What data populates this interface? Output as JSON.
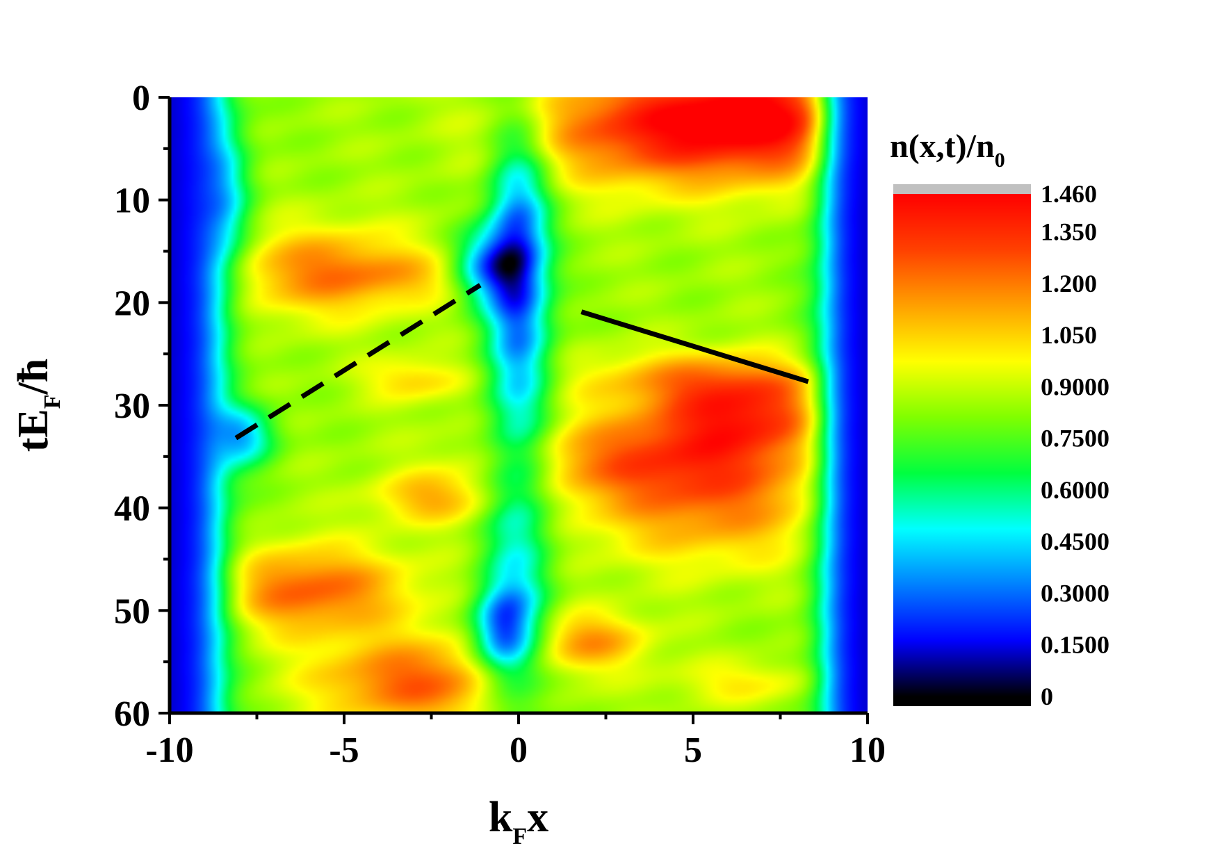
{
  "chart_data": {
    "type": "heatmap",
    "title": "",
    "xlabel": {
      "main": "k",
      "sub": "F",
      "tail": "x"
    },
    "ylabel": {
      "main": "tE",
      "sub": "F",
      "tail": "/ħ"
    },
    "xlim": [
      -10,
      10
    ],
    "ylim": [
      0,
      60
    ],
    "y_inverted": true,
    "x_ticks": [
      -10,
      -5,
      0,
      5,
      10
    ],
    "x_tick_labels": [
      "-10",
      "-5",
      "0",
      "5",
      "10"
    ],
    "y_ticks": [
      0,
      10,
      20,
      30,
      40,
      50,
      60
    ],
    "y_tick_labels": [
      "0",
      "10",
      "20",
      "30",
      "40",
      "50",
      "60"
    ],
    "colorbar": {
      "title": {
        "main": "n(x,t)/n",
        "sub": "0"
      },
      "range": [
        0,
        1.46
      ],
      "labels": [
        "1.460",
        "1.350",
        "1.200",
        "1.050",
        "0.9000",
        "0.7500",
        "0.6000",
        "0.4500",
        "0.3000",
        "0.1500",
        "0"
      ],
      "label_values": [
        1.46,
        1.35,
        1.2,
        1.05,
        0.9,
        0.75,
        0.6,
        0.45,
        0.3,
        0.15,
        0
      ],
      "colormap": [
        "#000000",
        "#0000ff",
        "#0080ff",
        "#00ffff",
        "#00ff40",
        "#80ff00",
        "#ffff00",
        "#ffa000",
        "#ff4000",
        "#ff0000"
      ],
      "over_color": "#c0c0c0"
    },
    "overlay_lines": [
      {
        "name": "dashed",
        "style": "dashed",
        "color": "#000000",
        "points": [
          [
            -8.1,
            33.2
          ],
          [
            -1.1,
            18.3
          ]
        ]
      },
      {
        "name": "solid",
        "style": "solid",
        "color": "#000000",
        "points": [
          [
            1.8,
            20.9
          ],
          [
            8.3,
            27.7
          ]
        ]
      }
    ],
    "density_features": {
      "background": 0.85,
      "edge_decay_left": -8.6,
      "edge_decay_right": 8.8,
      "blobs": [
        {
          "x": 7.5,
          "y": 2,
          "sx": 2.5,
          "sy": 4,
          "amp": 0.55
        },
        {
          "x": 3.5,
          "y": 3,
          "sx": 2.5,
          "sy": 4,
          "amp": 0.4
        },
        {
          "x": -5.5,
          "y": 17,
          "sx": 2.0,
          "sy": 3.0,
          "amp": 0.35
        },
        {
          "x": -3,
          "y": 17.5,
          "sx": 1.3,
          "sy": 1.5,
          "amp": 0.1
        },
        {
          "x": 5.5,
          "y": 27.5,
          "sx": 2.5,
          "sy": 2.0,
          "amp": 0.3
        },
        {
          "x": 6.5,
          "y": 31,
          "sx": 1.8,
          "sy": 2.5,
          "amp": 0.4
        },
        {
          "x": 4,
          "y": 35,
          "sx": 3.0,
          "sy": 3.0,
          "amp": 0.35
        },
        {
          "x": 5.5,
          "y": 40,
          "sx": 2.5,
          "sy": 4.0,
          "amp": 0.3
        },
        {
          "x": -2.5,
          "y": 39,
          "sx": 1.2,
          "sy": 1.8,
          "amp": 0.25
        },
        {
          "x": -3,
          "y": 27.5,
          "sx": 1.0,
          "sy": 1.5,
          "amp": 0.2
        },
        {
          "x": -6,
          "y": 48,
          "sx": 2.0,
          "sy": 3.0,
          "amp": 0.4
        },
        {
          "x": -3,
          "y": 57,
          "sx": 2.0,
          "sy": 3.0,
          "amp": 0.4
        },
        {
          "x": 2,
          "y": 53,
          "sx": 1.2,
          "sy": 2.0,
          "amp": 0.3
        },
        {
          "x": 6.5,
          "y": 57,
          "sx": 1.5,
          "sy": 1.5,
          "amp": 0.15
        },
        {
          "x": 0,
          "y": 15,
          "sx": 0.6,
          "sy": 8.0,
          "amp": -0.45
        },
        {
          "x": -0.9,
          "y": 16.5,
          "sx": 0.7,
          "sy": 2.5,
          "amp": -0.45
        },
        {
          "x": 0,
          "y": 38,
          "sx": 0.7,
          "sy": 20.0,
          "amp": -0.35
        },
        {
          "x": -0.5,
          "y": 52,
          "sx": 0.6,
          "sy": 3.0,
          "amp": -0.5
        },
        {
          "x": -8,
          "y": 33,
          "sx": 0.7,
          "sy": 2.0,
          "amp": -0.45
        },
        {
          "x": -8.6,
          "y": 10,
          "sx": 0.6,
          "sy": 5.0,
          "amp": -0.35
        }
      ]
    }
  }
}
